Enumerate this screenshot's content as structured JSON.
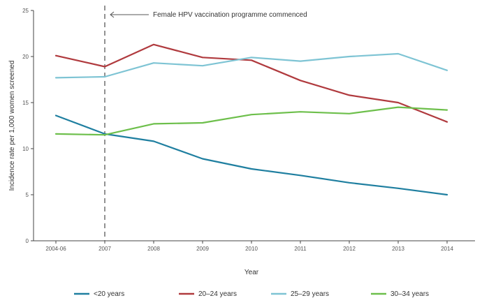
{
  "chart_data": {
    "type": "line",
    "title": "",
    "xlabel": "Year",
    "ylabel": "Incidence rate per 1,000 women screened",
    "categories": [
      "2004-06",
      "2007",
      "2008",
      "2009",
      "2010",
      "2011",
      "2012",
      "2013",
      "2014"
    ],
    "ylim": [
      0,
      25
    ],
    "yticks": [
      0,
      5,
      10,
      15,
      20,
      25
    ],
    "grid": false,
    "legend_position": "bottom",
    "series": [
      {
        "name": "<20 years",
        "color": "#1f7fa0",
        "values": [
          13.6,
          11.6,
          10.8,
          8.9,
          7.8,
          7.1,
          6.3,
          5.7,
          5.0
        ]
      },
      {
        "name": "20–24 years",
        "color": "#b03a3e",
        "values": [
          20.1,
          18.9,
          21.3,
          19.9,
          19.6,
          17.4,
          15.8,
          15.0,
          12.9
        ]
      },
      {
        "name": "25–29 years",
        "color": "#7ec4d4",
        "values": [
          17.7,
          17.8,
          19.3,
          19.0,
          19.9,
          19.5,
          20.0,
          20.3,
          18.5
        ]
      },
      {
        "name": "30–34 years",
        "color": "#6dbf4b",
        "values": [
          11.6,
          11.5,
          12.7,
          12.8,
          13.7,
          14.0,
          13.8,
          14.5,
          14.2
        ]
      }
    ],
    "annotation": {
      "label": "Female HPV vaccination programme commenced",
      "at_category": "2007"
    }
  }
}
